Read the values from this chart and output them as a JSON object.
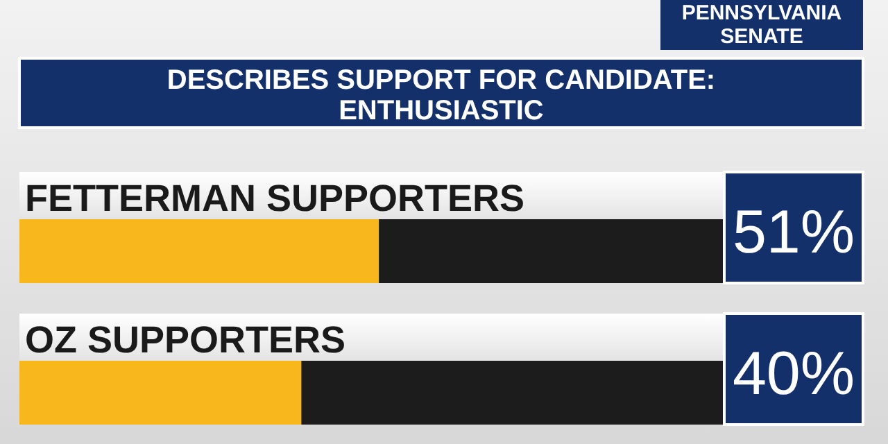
{
  "chart_data": {
    "type": "bar",
    "orientation": "horizontal",
    "title": "DESCRIBES SUPPORT FOR CANDIDATE: ENTHUSIASTIC",
    "subtitle": "PENNSYLVANIA SENATE",
    "categories": [
      "FETTERMAN SUPPORTERS",
      "OZ SUPPORTERS"
    ],
    "values": [
      51,
      40
    ],
    "color": "#f8b71c",
    "value_labels": [
      "51%",
      "40%"
    ],
    "xlim": [
      0,
      100
    ],
    "tick_labels": false
  }
}
